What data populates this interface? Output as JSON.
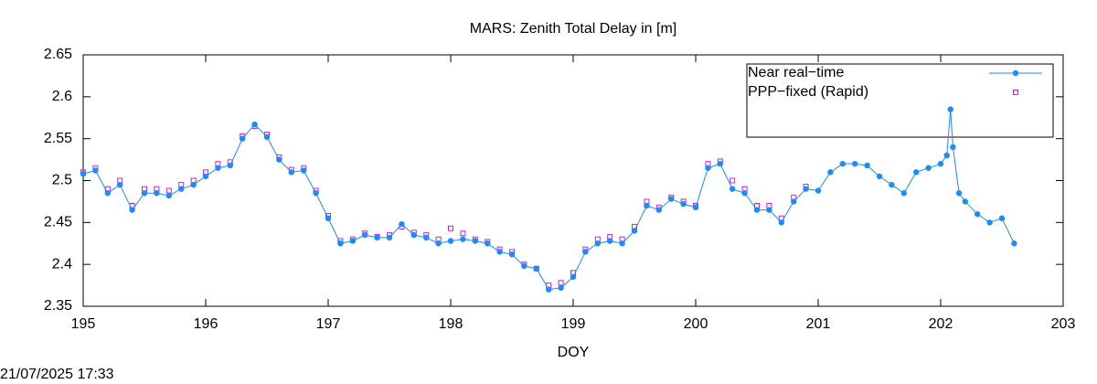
{
  "chart_data": {
    "type": "line",
    "title": "MARS: Zenith Total Delay in [m]",
    "x_label": "DOY",
    "footer": "21/07/2025 17:33",
    "xlim": [
      195,
      203
    ],
    "xticks": [
      195,
      196,
      197,
      198,
      199,
      200,
      201,
      202,
      203
    ],
    "ylim": [
      2.35,
      2.65
    ],
    "yticks": [
      2.35,
      2.4,
      2.45,
      2.5,
      2.55,
      2.6,
      2.65
    ],
    "legend": "top-right",
    "series": [
      {
        "name": "Near real−time",
        "color": "#1a8cff",
        "marker": "circle",
        "line": true,
        "x": [
          195.0,
          195.1,
          195.2,
          195.3,
          195.4,
          195.5,
          195.6,
          195.7,
          195.8,
          195.9,
          196.0,
          196.1,
          196.2,
          196.3,
          196.4,
          196.5,
          196.6,
          196.7,
          196.8,
          196.9,
          197.0,
          197.1,
          197.2,
          197.3,
          197.4,
          197.5,
          197.6,
          197.7,
          197.8,
          197.9,
          198.0,
          198.1,
          198.2,
          198.3,
          198.4,
          198.5,
          198.6,
          198.7,
          198.8,
          198.9,
          199.0,
          199.1,
          199.2,
          199.3,
          199.4,
          199.5,
          199.6,
          199.7,
          199.8,
          199.9,
          200.0,
          200.1,
          200.2,
          200.3,
          200.4,
          200.5,
          200.6,
          200.7,
          200.8,
          200.9,
          201.0,
          201.1,
          201.2,
          201.3,
          201.4,
          201.5,
          201.6,
          201.7,
          201.8,
          201.9,
          202.0,
          202.05,
          202.08,
          202.1,
          202.15,
          202.2,
          202.3,
          202.4,
          202.5,
          202.6
        ],
        "values": [
          2.508,
          2.512,
          2.485,
          2.495,
          2.465,
          2.485,
          2.485,
          2.482,
          2.49,
          2.495,
          2.505,
          2.515,
          2.518,
          2.55,
          2.567,
          2.552,
          2.525,
          2.51,
          2.512,
          2.485,
          2.455,
          2.425,
          2.428,
          2.435,
          2.432,
          2.432,
          2.448,
          2.435,
          2.432,
          2.425,
          2.428,
          2.43,
          2.428,
          2.425,
          2.415,
          2.412,
          2.398,
          2.395,
          2.37,
          2.372,
          2.385,
          2.415,
          2.425,
          2.428,
          2.425,
          2.44,
          2.47,
          2.465,
          2.478,
          2.472,
          2.468,
          2.515,
          2.52,
          2.49,
          2.485,
          2.465,
          2.465,
          2.45,
          2.475,
          2.49,
          2.488,
          2.51,
          2.52,
          2.52,
          2.518,
          2.505,
          2.495,
          2.485,
          2.51,
          2.515,
          2.52,
          2.53,
          2.585,
          2.54,
          2.485,
          2.475,
          2.46,
          2.45,
          2.455,
          2.425
        ]
      },
      {
        "name": "PPP−fixed (Rapid)",
        "color": "#cc22cc",
        "marker": "square",
        "line": false,
        "x": [
          195.0,
          195.1,
          195.2,
          195.3,
          195.4,
          195.5,
          195.6,
          195.7,
          195.8,
          195.9,
          196.0,
          196.1,
          196.2,
          196.3,
          196.4,
          196.5,
          196.6,
          196.7,
          196.8,
          196.9,
          197.0,
          197.1,
          197.2,
          197.3,
          197.4,
          197.5,
          197.6,
          197.7,
          197.8,
          197.9,
          198.0,
          198.1,
          198.2,
          198.3,
          198.4,
          198.5,
          198.6,
          198.7,
          198.8,
          198.9,
          199.0,
          199.1,
          199.2,
          199.3,
          199.4,
          199.5,
          199.6,
          199.7,
          199.8,
          199.9,
          200.0,
          200.1,
          200.2,
          200.3,
          200.4,
          200.5,
          200.6,
          200.7,
          200.8,
          200.9
        ],
        "values": [
          2.51,
          2.515,
          2.49,
          2.5,
          2.47,
          2.49,
          2.49,
          2.488,
          2.495,
          2.5,
          2.51,
          2.52,
          2.522,
          2.553,
          2.565,
          2.555,
          2.528,
          2.513,
          2.515,
          2.488,
          2.458,
          2.428,
          2.43,
          2.437,
          2.433,
          2.435,
          2.445,
          2.438,
          2.435,
          2.43,
          2.443,
          2.437,
          2.43,
          2.427,
          2.418,
          2.415,
          2.4,
          2.395,
          2.375,
          2.378,
          2.39,
          2.418,
          2.43,
          2.433,
          2.43,
          2.445,
          2.475,
          2.468,
          2.48,
          2.475,
          2.47,
          2.52,
          2.523,
          2.5,
          2.49,
          2.47,
          2.47,
          2.455,
          2.48,
          2.493
        ]
      }
    ]
  }
}
